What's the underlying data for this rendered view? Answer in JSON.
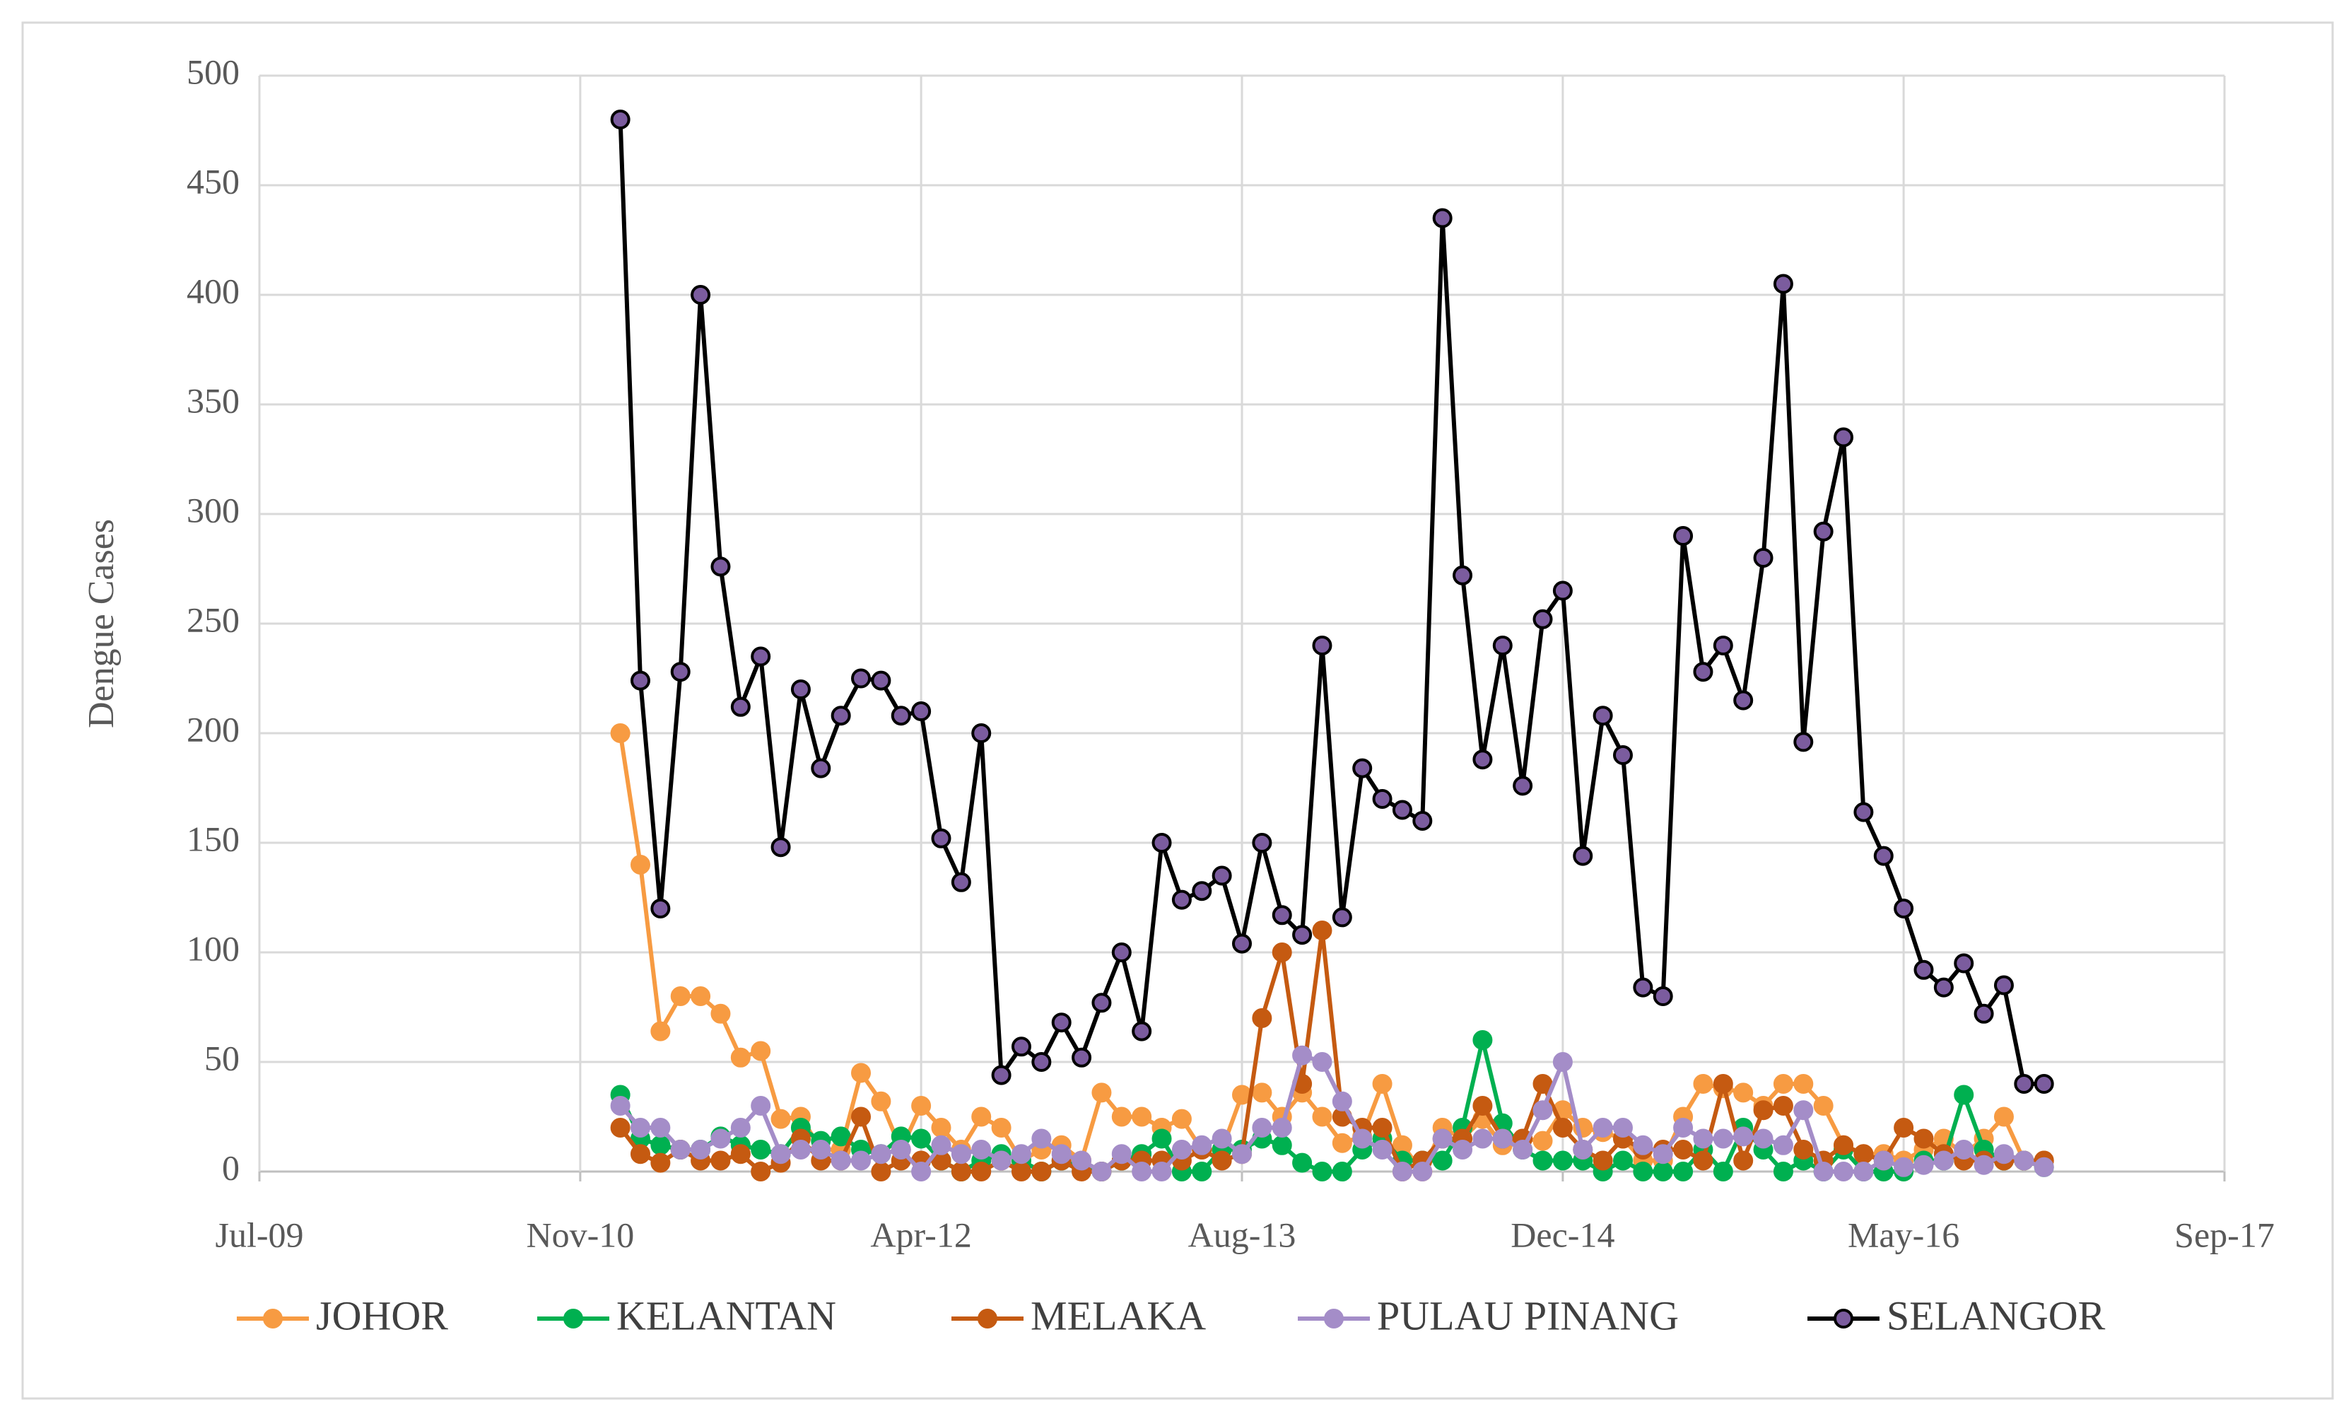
{
  "chart_data": {
    "type": "line",
    "y_label": "Dengue Cases",
    "x": [
      "2011-01",
      "2011-02",
      "2011-03",
      "2011-04",
      "2011-05",
      "2011-06",
      "2011-07",
      "2011-08",
      "2011-09",
      "2011-10",
      "2011-11",
      "2011-12",
      "2012-01",
      "2012-02",
      "2012-03",
      "2012-04",
      "2012-05",
      "2012-06",
      "2012-07",
      "2012-08",
      "2012-09",
      "2012-10",
      "2012-11",
      "2012-12",
      "2013-01",
      "2013-02",
      "2013-03",
      "2013-04",
      "2013-05",
      "2013-06",
      "2013-07",
      "2013-08",
      "2013-09",
      "2013-10",
      "2013-11",
      "2013-12",
      "2014-01",
      "2014-02",
      "2014-03",
      "2014-04",
      "2014-05",
      "2014-06",
      "2014-07",
      "2014-08",
      "2014-09",
      "2014-10",
      "2014-11",
      "2014-12",
      "2015-01",
      "2015-02",
      "2015-03",
      "2015-04",
      "2015-05",
      "2015-06",
      "2015-07",
      "2015-08",
      "2015-09",
      "2015-10",
      "2015-11",
      "2015-12",
      "2016-01",
      "2016-02",
      "2016-03",
      "2016-04",
      "2016-05",
      "2016-06",
      "2016-07",
      "2016-08",
      "2016-09",
      "2016-10",
      "2016-11",
      "2016-12"
    ],
    "series": [
      {
        "name": "JOHOR",
        "color": "#f79b42",
        "values": [
          200,
          140,
          64,
          80,
          80,
          72,
          52,
          55,
          24,
          25,
          10,
          10,
          45,
          32,
          10,
          30,
          20,
          10,
          25,
          20,
          5,
          10,
          12,
          5,
          36,
          25,
          25,
          20,
          24,
          10,
          10,
          35,
          36,
          25,
          36,
          25,
          13,
          16,
          40,
          12,
          0,
          20,
          15,
          24,
          12,
          15,
          14,
          28,
          20,
          18,
          15,
          5,
          5,
          25,
          40,
          38,
          36,
          30,
          40,
          40,
          30,
          12,
          8,
          8,
          5,
          10,
          15,
          8,
          15,
          25,
          5,
          5
        ]
      },
      {
        "name": "KELANTAN",
        "color": "#00b050",
        "values": [
          35,
          15,
          12,
          10,
          10,
          16,
          12,
          10,
          8,
          20,
          14,
          16,
          10,
          8,
          16,
          15,
          5,
          0,
          5,
          8,
          5,
          0,
          5,
          2,
          0,
          5,
          8,
          15,
          0,
          0,
          10,
          10,
          15,
          12,
          4,
          0,
          0,
          10,
          15,
          5,
          5,
          5,
          20,
          60,
          22,
          10,
          5,
          5,
          5,
          0,
          5,
          0,
          0,
          0,
          10,
          0,
          20,
          10,
          0,
          5,
          0,
          10,
          0,
          0,
          0,
          5,
          5,
          35,
          10,
          5,
          5,
          2
        ]
      },
      {
        "name": "MELAKA",
        "color": "#c55a11",
        "values": [
          20,
          8,
          4,
          10,
          5,
          5,
          8,
          0,
          4,
          15,
          5,
          5,
          25,
          0,
          5,
          5,
          5,
          0,
          0,
          5,
          0,
          0,
          5,
          0,
          0,
          5,
          5,
          5,
          5,
          10,
          5,
          8,
          70,
          100,
          40,
          110,
          25,
          20,
          20,
          0,
          5,
          15,
          15,
          30,
          15,
          15,
          40,
          20,
          10,
          5,
          15,
          10,
          10,
          10,
          5,
          40,
          5,
          28,
          30,
          10,
          5,
          12,
          8,
          5,
          20,
          15,
          8,
          5,
          5,
          5,
          5,
          5
        ]
      },
      {
        "name": "PULAU PINANG",
        "color": "#a48dc8",
        "values": [
          30,
          20,
          20,
          10,
          10,
          15,
          20,
          30,
          8,
          10,
          10,
          5,
          5,
          8,
          10,
          0,
          12,
          8,
          10,
          5,
          8,
          15,
          8,
          5,
          0,
          8,
          0,
          0,
          10,
          12,
          15,
          8,
          20,
          20,
          53,
          50,
          32,
          15,
          10,
          0,
          0,
          15,
          10,
          15,
          15,
          10,
          28,
          50,
          10,
          20,
          20,
          12,
          8,
          20,
          15,
          15,
          16,
          15,
          12,
          28,
          0,
          0,
          0,
          5,
          2,
          3,
          5,
          10,
          3,
          8,
          5,
          2
        ]
      },
      {
        "name": "SELANGOR",
        "color": "#000000",
        "marker_fill": "#7b5c9e",
        "values": [
          480,
          224,
          120,
          228,
          400,
          276,
          212,
          235,
          148,
          220,
          184,
          208,
          225,
          224,
          208,
          210,
          152,
          132,
          200,
          44,
          57,
          50,
          68,
          52,
          77,
          100,
          64,
          150,
          124,
          128,
          135,
          104,
          150,
          117,
          108,
          240,
          116,
          184,
          170,
          165,
          160,
          435,
          272,
          188,
          240,
          176,
          252,
          265,
          144,
          208,
          190,
          84,
          80,
          290,
          228,
          240,
          215,
          280,
          405,
          196,
          292,
          335,
          164,
          144,
          120,
          92,
          84,
          95,
          72,
          85,
          40,
          40
        ]
      }
    ],
    "xlim": [
      "2009-07",
      "2017-09"
    ],
    "xticks": [
      {
        "value": "2009-07",
        "label": "Jul-09"
      },
      {
        "value": "2010-11",
        "label": "Nov-10"
      },
      {
        "value": "2012-04",
        "label": "Apr-12"
      },
      {
        "value": "2013-08",
        "label": "Aug-13"
      },
      {
        "value": "2014-12",
        "label": "Dec-14"
      },
      {
        "value": "2016-05",
        "label": "May-16"
      },
      {
        "value": "2017-09",
        "label": "Sep-17"
      }
    ],
    "ylim": [
      0,
      500
    ],
    "yticks": [
      0,
      50,
      100,
      150,
      200,
      250,
      300,
      350,
      400,
      450,
      500
    ],
    "grid": true,
    "legend": "bottom"
  }
}
